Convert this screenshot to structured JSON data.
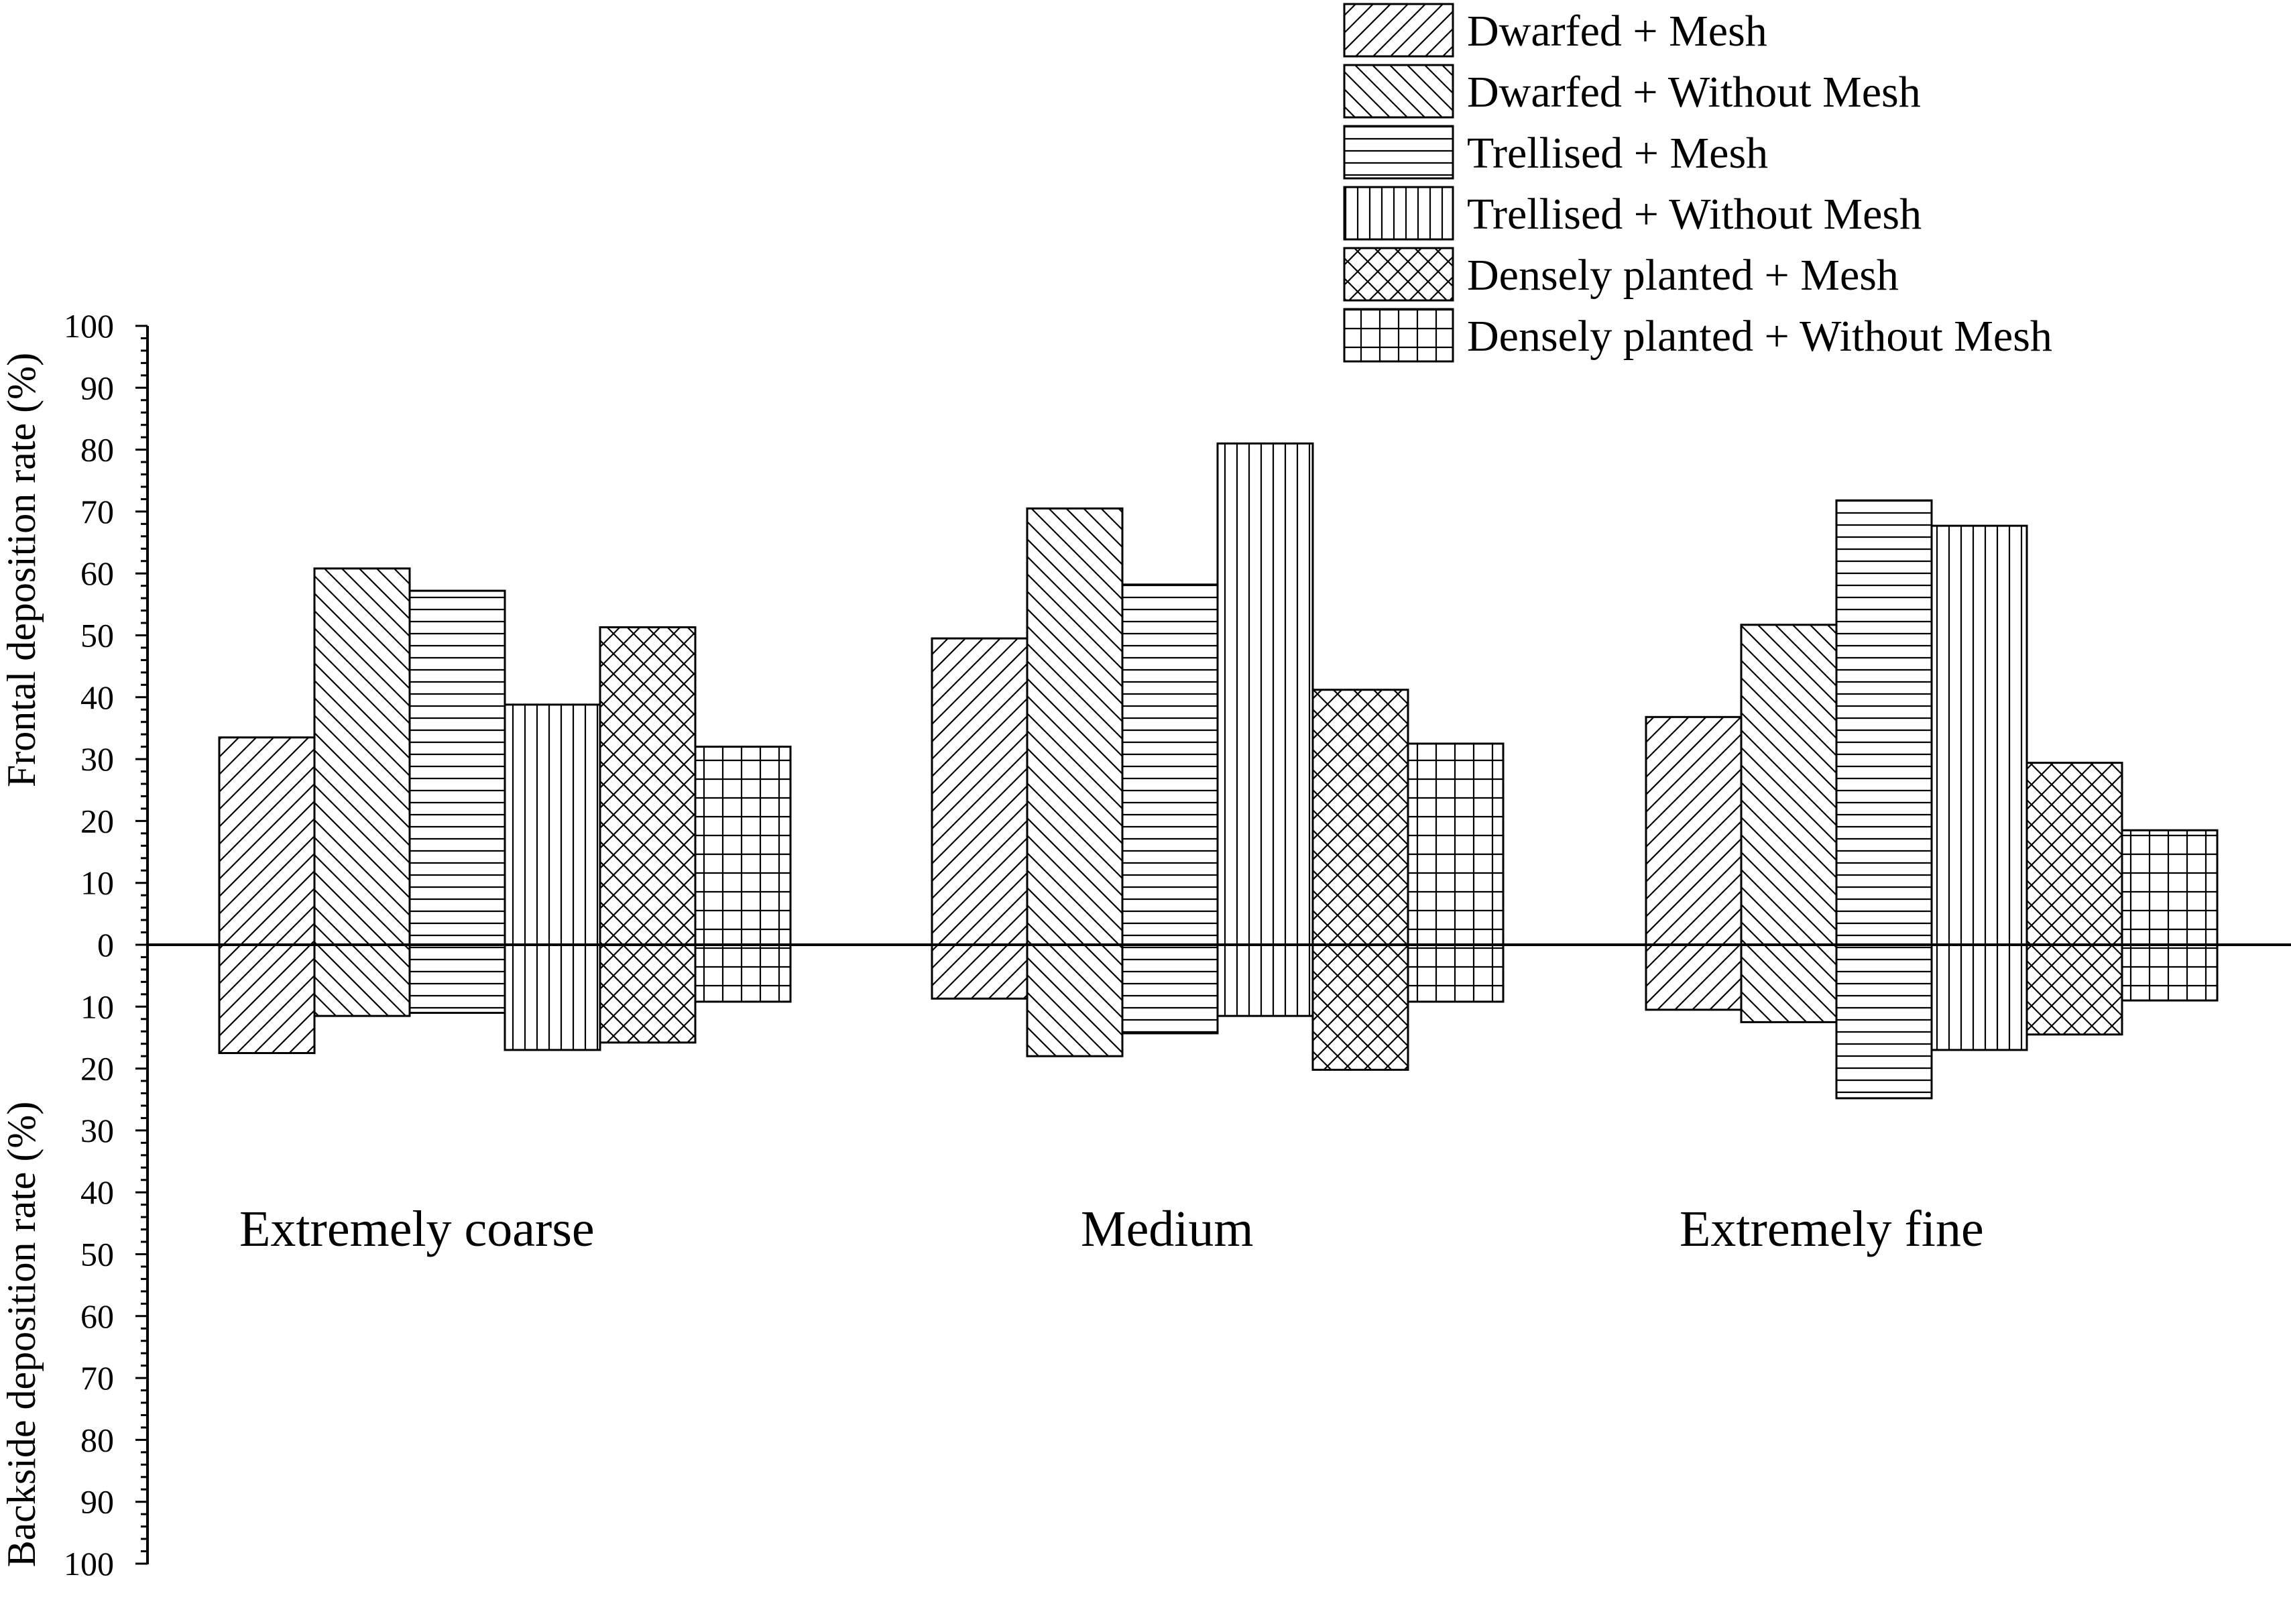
{
  "chart_data": {
    "type": "bar",
    "categories": [
      "Extremely coarse",
      "Medium",
      "Extremely fine"
    ],
    "series": [
      {
        "name": "Dwarfed + Mesh",
        "pattern": "diag-up",
        "frontal": [
          33.5,
          49.5,
          36.8
        ],
        "backside": [
          17.5,
          8.7,
          10.5
        ]
      },
      {
        "name": "Dwarfed + Without Mesh",
        "pattern": "diag-down",
        "frontal": [
          60.8,
          70.5,
          51.7
        ],
        "backside": [
          11.5,
          18.0,
          12.5
        ]
      },
      {
        "name": "Trellised + Mesh",
        "pattern": "horizontal",
        "frontal": [
          57.2,
          58.2,
          71.8
        ],
        "backside": [
          11.0,
          14.3,
          24.8
        ]
      },
      {
        "name": "Trellised + Without Mesh",
        "pattern": "vertical",
        "frontal": [
          38.8,
          81.0,
          67.7
        ],
        "backside": [
          17.0,
          11.5,
          17.0
        ]
      },
      {
        "name": "Densely planted + Mesh",
        "pattern": "crosshatch-diag",
        "frontal": [
          51.3,
          41.2,
          29.4
        ],
        "backside": [
          15.8,
          20.2,
          14.5
        ]
      },
      {
        "name": "Densely planted + Without Mesh",
        "pattern": "grid",
        "frontal": [
          32.0,
          32.5,
          18.5
        ],
        "backside": [
          9.2,
          9.2,
          9.0
        ]
      }
    ],
    "ylabel_top": "Frontal deposition rate (%)",
    "ylabel_bottom": "Backside deposition rate (%)",
    "ylim_top": [
      0,
      100
    ],
    "ylim_bottom": [
      0,
      100
    ],
    "ticks_top": [
      "0",
      "10",
      "20",
      "30",
      "40",
      "50",
      "60",
      "70",
      "80",
      "90",
      "100"
    ],
    "ticks_bottom": [
      "10",
      "20",
      "30",
      "40",
      "50",
      "60",
      "70",
      "80",
      "90",
      "100"
    ],
    "legend_position": "top-right",
    "grid": false,
    "colors": {
      "fill": "#ffffff",
      "stroke": "#000000"
    }
  }
}
